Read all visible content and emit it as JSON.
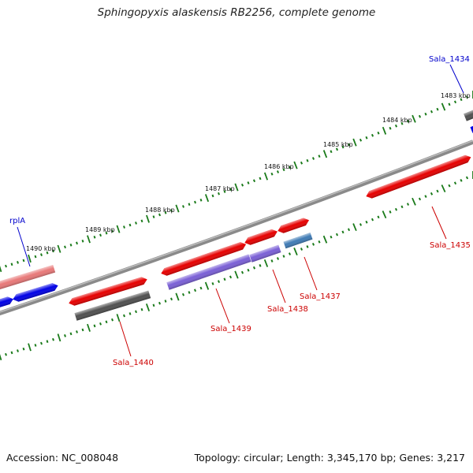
{
  "title": "Sphingopyxis alaskensis RB2256, complete genome",
  "colors": {
    "backbone": "#8a8a8a",
    "tick": "#1a7a1a",
    "gene_red": "#e60000",
    "gene_pink": "#e87878",
    "gene_blue": "#0000e6",
    "gene_purple": "#7a5fd6",
    "gene_steel": "#3f7bb5",
    "gene_gray": "#505050",
    "label_red": "#cc0000",
    "label_blue": "#0000cc"
  },
  "kbp_labels": [
    "1483 kbp",
    "1484 kbp",
    "1485 kbp",
    "1486 kbp",
    "1487 kbp",
    "1488 kbp",
    "1489 kbp",
    "1490 kbp"
  ],
  "gene_labels": {
    "sala_1434": "Sala_1434",
    "rpla": "rplA",
    "sala_1435": "Sala_1435",
    "sala_1437": "Sala_1437",
    "sala_1438": "Sala_1438",
    "sala_1439": "Sala_1439",
    "sala_1440": "Sala_1440"
  },
  "footer": {
    "accession": "Accession: NC_008048",
    "topology": "Topology: circular; Length: 3,345,170 bp; Genes: 3,217"
  }
}
